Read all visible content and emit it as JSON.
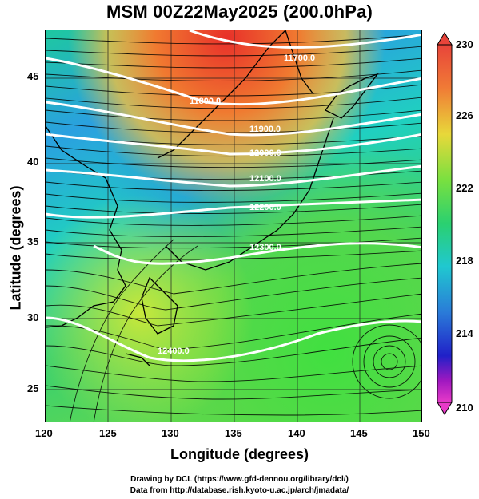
{
  "title": "MSM 00Z22May2025 (200.0hPa)",
  "axes": {
    "xlabel": "Longitude (degrees)",
    "ylabel": "Latitude  (degrees)",
    "xticks": [
      "120",
      "125",
      "130",
      "135",
      "140",
      "145",
      "150"
    ],
    "yticks": [
      "45",
      "40",
      "35",
      "30",
      "25"
    ]
  },
  "colorbar": {
    "labels": [
      "230",
      "226",
      "222",
      "218",
      "214",
      "210"
    ],
    "colors": [
      "#e8443a",
      "#f0a038",
      "#d8e83a",
      "#3ccd3a",
      "#20d8c8",
      "#2a8ad8",
      "#1e2ed0",
      "#b018c0",
      "#e83ac8"
    ]
  },
  "contours": [
    "11700.0",
    "11800.0",
    "11900.0",
    "12000.0",
    "12100.0",
    "12200.0",
    "12300.0",
    "12400.0"
  ],
  "credits": {
    "line1": "Drawing by DCL (https://www.gfd-dennou.org/library/dcl/)",
    "line2": "Data from http://database.rish.kyoto-u.ac.jp/arch/jmadata/"
  }
}
